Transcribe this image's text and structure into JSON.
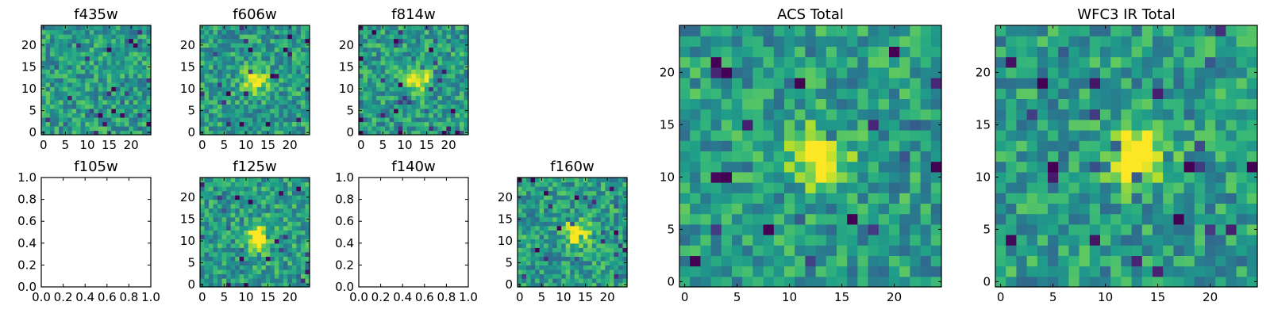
{
  "chart_data": [
    {
      "type": "heatmap",
      "title": "f435w",
      "empty": false,
      "xticks": [
        "0",
        "5",
        "10",
        "15",
        "20"
      ],
      "yticks": [
        "0",
        "5",
        "10",
        "15",
        "20"
      ],
      "xlim": [
        -0.5,
        24.5
      ],
      "ylim": [
        -0.5,
        24.5
      ],
      "grid_size": 25,
      "colormap": "viridis",
      "source_peak": [
        12,
        12
      ],
      "source_strength": 0.0
    },
    {
      "type": "heatmap",
      "title": "f606w",
      "empty": false,
      "xticks": [
        "0",
        "5",
        "10",
        "15",
        "20"
      ],
      "yticks": [
        "0",
        "5",
        "10",
        "15",
        "20"
      ],
      "xlim": [
        -0.5,
        24.5
      ],
      "ylim": [
        -0.5,
        24.5
      ],
      "grid_size": 25,
      "colormap": "viridis",
      "source_peak": [
        12,
        12
      ],
      "source_strength": 0.55
    },
    {
      "type": "heatmap",
      "title": "f814w",
      "empty": false,
      "xticks": [
        "0",
        "5",
        "10",
        "15",
        "20"
      ],
      "yticks": [
        "0",
        "5",
        "10",
        "15",
        "20"
      ],
      "xlim": [
        -0.5,
        24.5
      ],
      "ylim": [
        -0.5,
        24.5
      ],
      "grid_size": 25,
      "colormap": "viridis",
      "source_peak": [
        13,
        12
      ],
      "source_strength": 0.55
    },
    {
      "type": "empty",
      "title": "f105w",
      "empty": true,
      "xticks": [
        "0.0",
        "0.2",
        "0.4",
        "0.6",
        "0.8",
        "1.0"
      ],
      "yticks": [
        "0.0",
        "0.2",
        "0.4",
        "0.6",
        "0.8",
        "1.0"
      ],
      "xlim": [
        0,
        1
      ],
      "ylim": [
        0,
        1
      ]
    },
    {
      "type": "heatmap",
      "title": "f125w",
      "empty": false,
      "xticks": [
        "0",
        "5",
        "10",
        "15",
        "20"
      ],
      "yticks": [
        "0",
        "5",
        "10",
        "15",
        "20"
      ],
      "xlim": [
        -0.5,
        24.5
      ],
      "ylim": [
        -0.5,
        24.5
      ],
      "grid_size": 25,
      "colormap": "viridis",
      "source_peak": [
        13,
        11
      ],
      "source_strength": 0.65
    },
    {
      "type": "empty",
      "title": "f140w",
      "empty": true,
      "xticks": [
        "0.0",
        "0.2",
        "0.4",
        "0.6",
        "0.8",
        "1.0"
      ],
      "yticks": [
        "0.0",
        "0.2",
        "0.4",
        "0.6",
        "0.8",
        "1.0"
      ],
      "xlim": [
        0,
        1
      ],
      "ylim": [
        0,
        1
      ]
    },
    {
      "type": "heatmap",
      "title": "f160w",
      "empty": false,
      "xticks": [
        "0",
        "5",
        "10",
        "15",
        "20"
      ],
      "yticks": [
        "0",
        "5",
        "10",
        "15",
        "20"
      ],
      "xlim": [
        -0.5,
        24.5
      ],
      "ylim": [
        -0.5,
        24.5
      ],
      "grid_size": 25,
      "colormap": "viridis",
      "source_peak": [
        13,
        12
      ],
      "source_strength": 0.6
    },
    {
      "type": "heatmap",
      "title": "ACS Total",
      "empty": false,
      "xticks": [
        "0",
        "5",
        "10",
        "15",
        "20"
      ],
      "yticks": [
        "0",
        "5",
        "10",
        "15",
        "20"
      ],
      "xlim": [
        -0.5,
        24.5
      ],
      "ylim": [
        -0.5,
        24.5
      ],
      "grid_size": 25,
      "colormap": "viridis",
      "source_peak": [
        13,
        12
      ],
      "source_strength": 0.6
    },
    {
      "type": "heatmap",
      "title": "WFC3 IR Total",
      "empty": false,
      "xticks": [
        "0",
        "5",
        "10",
        "15",
        "20"
      ],
      "yticks": [
        "0",
        "5",
        "10",
        "15",
        "20"
      ],
      "xlim": [
        -0.5,
        24.5
      ],
      "ylim": [
        -0.5,
        24.5
      ],
      "grid_size": 25,
      "colormap": "viridis",
      "source_peak": [
        13,
        12
      ],
      "source_strength": 0.65
    }
  ]
}
